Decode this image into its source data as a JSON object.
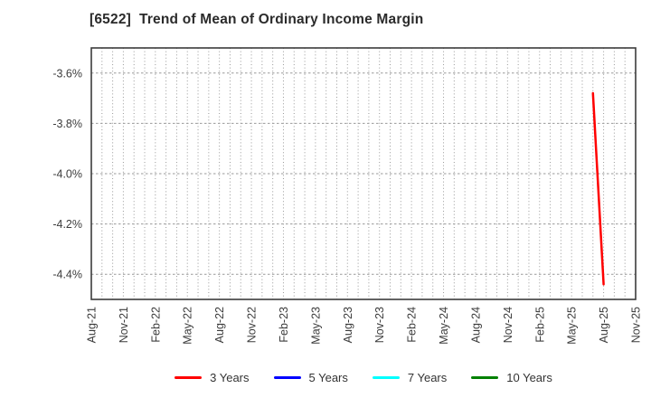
{
  "chart_data": {
    "type": "line",
    "title": "[6522]  Trend of Mean of Ordinary Income Margin",
    "xlabel": "",
    "ylabel": "",
    "x_tick_labels": [
      "Aug-21",
      "Nov-21",
      "Feb-22",
      "May-22",
      "Aug-22",
      "Nov-22",
      "Feb-23",
      "May-23",
      "Aug-23",
      "Nov-23",
      "Feb-24",
      "May-24",
      "Aug-24",
      "Nov-24",
      "Feb-25",
      "May-25",
      "Aug-25",
      "Nov-25"
    ],
    "months_per_tick": 3,
    "total_months": 51,
    "x_range": [
      "Aug-21",
      "Nov-25"
    ],
    "y_tick_labels": [
      "-3.6%",
      "-3.8%",
      "-4.0%",
      "-4.2%",
      "-4.4%"
    ],
    "y_ticks": [
      -3.6,
      -3.8,
      -4.0,
      -4.2,
      -4.4
    ],
    "ylim": [
      -4.5,
      -3.5
    ],
    "grid": true,
    "grid_style": {
      "vertical": "dotted-monthly",
      "horizontal": "dashed-at-ticks"
    },
    "legend_position": "bottom",
    "series": [
      {
        "name": "3 Years",
        "color": "#ff0000",
        "points": [
          {
            "month": "Jul-25",
            "month_index": 47,
            "value": -3.68
          },
          {
            "month": "Aug-25",
            "month_index": 48,
            "value": -4.44
          }
        ]
      },
      {
        "name": "5 Years",
        "color": "#0000ff",
        "points": []
      },
      {
        "name": "7 Years",
        "color": "#00ffff",
        "points": []
      },
      {
        "name": "10 Years",
        "color": "#008000",
        "points": []
      }
    ],
    "style": {
      "background": "#ffffff",
      "frame_color": "#3c3c3c",
      "grid_color": "#999999",
      "tick_label_color": "#3c3c3c",
      "title_color": "#2b2b2b",
      "line_width": 2.5
    }
  }
}
